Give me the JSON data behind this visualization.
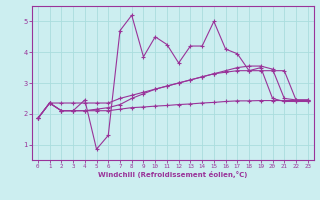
{
  "xlabel": "Windchill (Refroidissement éolien,°C)",
  "bg_color": "#cceef0",
  "grid_color": "#aadddd",
  "line_color": "#993399",
  "spine_color": "#993399",
  "xlim": [
    -0.5,
    23.5
  ],
  "ylim": [
    0.5,
    5.5
  ],
  "yticks": [
    1,
    2,
    3,
    4,
    5
  ],
  "xticks": [
    0,
    1,
    2,
    3,
    4,
    5,
    6,
    7,
    8,
    9,
    10,
    11,
    12,
    13,
    14,
    15,
    16,
    17,
    18,
    19,
    20,
    21,
    22,
    23
  ],
  "line1_x": [
    0,
    1,
    2,
    3,
    4,
    5,
    6,
    7,
    8,
    9,
    10,
    11,
    12,
    13,
    14,
    15,
    16,
    17,
    18,
    19,
    20,
    21,
    22,
    23
  ],
  "line1_y": [
    1.85,
    2.35,
    2.1,
    2.1,
    2.1,
    2.1,
    2.1,
    2.15,
    2.2,
    2.22,
    2.25,
    2.27,
    2.3,
    2.32,
    2.35,
    2.37,
    2.4,
    2.42,
    2.42,
    2.43,
    2.43,
    2.43,
    2.43,
    2.43
  ],
  "line2_x": [
    0,
    1,
    2,
    3,
    4,
    5,
    6,
    7,
    8,
    9,
    10,
    11,
    12,
    13,
    14,
    15,
    16,
    17,
    18,
    19,
    20,
    21,
    22,
    23
  ],
  "line2_y": [
    1.85,
    2.35,
    2.1,
    2.1,
    2.1,
    2.15,
    2.2,
    2.3,
    2.5,
    2.65,
    2.8,
    2.9,
    3.0,
    3.1,
    3.2,
    3.3,
    3.35,
    3.4,
    3.4,
    3.4,
    3.4,
    3.4,
    2.45,
    2.45
  ],
  "line3_x": [
    0,
    1,
    2,
    3,
    4,
    5,
    6,
    7,
    8,
    9,
    10,
    11,
    12,
    13,
    14,
    15,
    16,
    17,
    18,
    19,
    20,
    21,
    22,
    23
  ],
  "line3_y": [
    1.85,
    2.35,
    2.1,
    2.1,
    2.45,
    0.85,
    1.3,
    4.7,
    5.2,
    3.85,
    4.5,
    4.25,
    3.65,
    4.2,
    4.2,
    5.0,
    4.1,
    3.95,
    3.4,
    3.5,
    2.5,
    2.4,
    2.4,
    2.4
  ],
  "line4_x": [
    0,
    1,
    2,
    3,
    4,
    5,
    6,
    7,
    8,
    9,
    10,
    11,
    12,
    13,
    14,
    15,
    16,
    17,
    18,
    19,
    20,
    21,
    22,
    23
  ],
  "line4_y": [
    1.85,
    2.35,
    2.35,
    2.35,
    2.35,
    2.35,
    2.35,
    2.5,
    2.6,
    2.7,
    2.8,
    2.9,
    3.0,
    3.1,
    3.2,
    3.3,
    3.4,
    3.5,
    3.55,
    3.55,
    3.45,
    2.5,
    2.45,
    2.45
  ]
}
